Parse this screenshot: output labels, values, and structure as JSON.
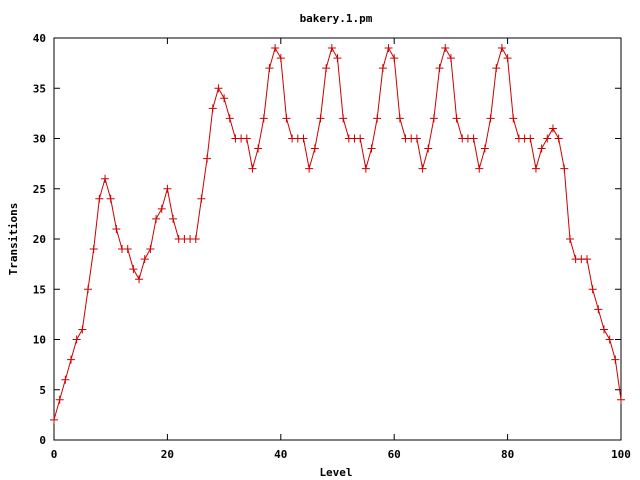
{
  "chart_data": {
    "type": "line",
    "title": "bakery.1.pm",
    "xlabel": "Level",
    "ylabel": "Transitions",
    "xlim": [
      0,
      100
    ],
    "ylim": [
      0,
      40
    ],
    "x_ticks": [
      0,
      20,
      40,
      60,
      80,
      100
    ],
    "y_ticks": [
      0,
      5,
      10,
      15,
      20,
      25,
      30,
      35,
      40
    ],
    "grid": false,
    "legend": "none",
    "marker": "plus",
    "series": [
      {
        "color": "#cc0000",
        "x": [
          0,
          1,
          2,
          3,
          4,
          5,
          6,
          7,
          8,
          9,
          10,
          11,
          12,
          13,
          14,
          15,
          16,
          17,
          18,
          19,
          20,
          21,
          22,
          23,
          24,
          25,
          26,
          27,
          28,
          29,
          30,
          31,
          32,
          33,
          34,
          35,
          36,
          37,
          38,
          39,
          40,
          41,
          42,
          43,
          44,
          45,
          46,
          47,
          48,
          49,
          50,
          51,
          52,
          53,
          54,
          55,
          56,
          57,
          58,
          59,
          60,
          61,
          62,
          63,
          64,
          65,
          66,
          67,
          68,
          69,
          70,
          71,
          72,
          73,
          74,
          75,
          76,
          77,
          78,
          79,
          80,
          81,
          82,
          83,
          84,
          85,
          86,
          87,
          88,
          89,
          90,
          91,
          92,
          93,
          94,
          95,
          96,
          97,
          98,
          99,
          100
        ],
        "y": [
          2,
          4,
          6,
          8,
          10,
          11,
          15,
          19,
          24,
          26,
          24,
          21,
          19,
          19,
          17,
          16,
          18,
          19,
          22,
          23,
          25,
          22,
          20,
          20,
          20,
          20,
          24,
          28,
          33,
          35,
          34,
          32,
          30,
          30,
          30,
          27,
          29,
          32,
          37,
          39,
          38,
          32,
          30,
          30,
          30,
          27,
          29,
          32,
          37,
          39,
          38,
          32,
          30,
          30,
          30,
          27,
          29,
          32,
          37,
          39,
          38,
          32,
          30,
          30,
          30,
          27,
          29,
          32,
          37,
          39,
          38,
          32,
          30,
          30,
          30,
          27,
          29,
          32,
          37,
          39,
          38,
          32,
          30,
          30,
          30,
          27,
          29,
          30,
          31,
          30,
          27,
          20,
          18,
          18,
          18,
          15,
          13,
          11,
          10,
          8,
          4
        ]
      }
    ]
  }
}
